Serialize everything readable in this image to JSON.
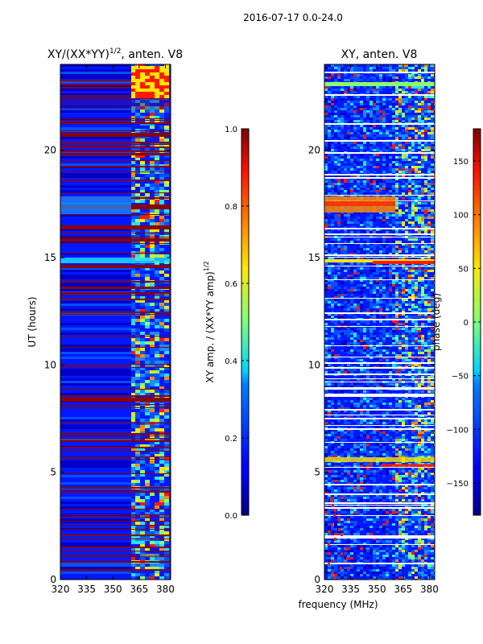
{
  "suptitle": "2016-07-17 0.0-24.0",
  "chart_data": [
    {
      "type": "heatmap",
      "title_base": "XY/(XX*YY)",
      "title_sup": "1/2",
      "title_suffix": ", anten. V8",
      "xlabel": "",
      "ylabel": "UT (hours)",
      "xlim": [
        320,
        383
      ],
      "ylim": [
        0,
        24
      ],
      "xticks": [
        "320",
        "335",
        "350",
        "365",
        "380"
      ],
      "xtick_values": [
        320,
        335,
        350,
        365,
        380
      ],
      "yticks": [
        "0",
        "5",
        "10",
        "15",
        "20"
      ],
      "ytick_values": [
        0,
        5,
        10,
        15,
        20
      ],
      "colormap": "jet",
      "colorbar": {
        "label_base": "XY amp. / (XX*YY amp)",
        "label_sup": "1/2",
        "range": [
          0.0,
          1.0
        ],
        "ticks": [
          "0.0",
          "0.2",
          "0.4",
          "0.6",
          "0.8",
          "1.0"
        ],
        "tick_values": [
          0.0,
          0.2,
          0.4,
          0.6,
          0.8,
          1.0
        ]
      }
    },
    {
      "type": "heatmap",
      "title": "XY, anten. V8",
      "xlabel": "frequency (MHz)",
      "ylabel": "",
      "xlim": [
        320,
        383
      ],
      "ylim": [
        0,
        24
      ],
      "xticks": [
        "320",
        "335",
        "350",
        "365",
        "380"
      ],
      "xtick_values": [
        320,
        335,
        350,
        365,
        380
      ],
      "yticks": [
        "0",
        "5",
        "10",
        "15",
        "20"
      ],
      "ytick_values": [
        0,
        5,
        10,
        15,
        20
      ],
      "colormap": "jet",
      "colorbar": {
        "label": "phase (deg)",
        "range": [
          -180,
          180
        ],
        "ticks": [
          "−150",
          "−100",
          "−50",
          "0",
          "50",
          "100",
          "150"
        ],
        "tick_values": [
          -150,
          -100,
          -50,
          0,
          50,
          100,
          150
        ]
      }
    }
  ]
}
